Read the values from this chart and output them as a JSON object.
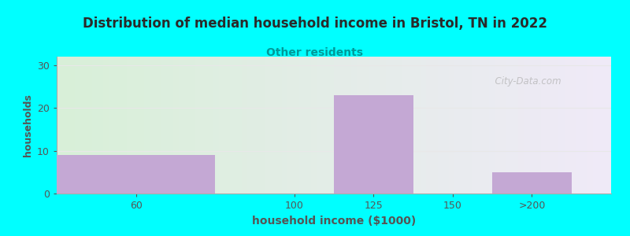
{
  "title": "Distribution of median household income in Bristol, TN in 2022",
  "subtitle": "Other residents",
  "xlabel": "household income ($1000)",
  "ylabel": "households",
  "background_color": "#00FFFF",
  "bar_color": "#c4a8d4",
  "title_color": "#2a2a2a",
  "subtitle_color": "#009999",
  "axis_label_color": "#555555",
  "tick_label_color": "#555555",
  "watermark": "  City-Data.com",
  "bar_centers": [
    1,
    3,
    4,
    5,
    6
  ],
  "bar_widths": [
    2,
    1,
    1,
    1,
    1
  ],
  "values": [
    9,
    0,
    23,
    0,
    5
  ],
  "xtick_positions": [
    1,
    3,
    4,
    5,
    6
  ],
  "xtick_labels": [
    "60",
    "100",
    "125",
    "150",
    ">200"
  ],
  "yticks": [
    0,
    10,
    20,
    30
  ],
  "ylim": [
    0,
    32
  ],
  "xlim": [
    0,
    7
  ],
  "gradient_left": "#d8f0d8",
  "gradient_right": "#f0eaf8"
}
